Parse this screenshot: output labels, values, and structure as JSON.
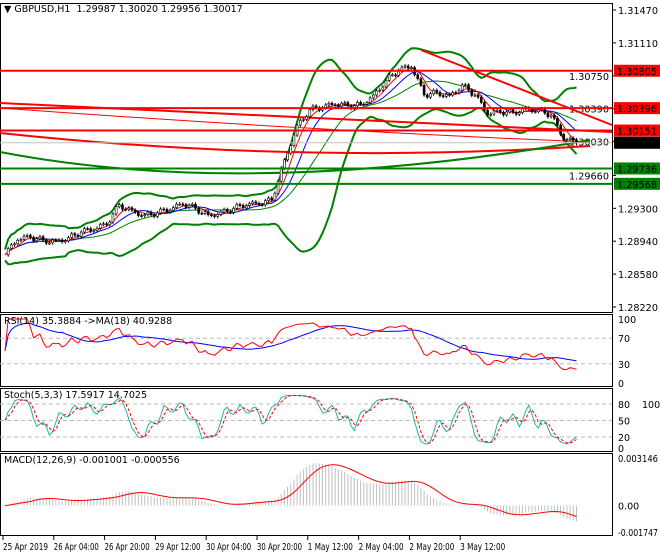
{
  "header": {
    "symbol": "GBPUSD,H1",
    "ohlc": "1.29987 1.30020 1.29956 1.30017"
  },
  "colors": {
    "bull": "#000000",
    "bear": "#000000",
    "support": "#008000",
    "resistance": "#ff0000",
    "ma_fast": "#ff0000",
    "ma_mid": "#0000ff",
    "bands": "#008000",
    "rsi": "#ff0000",
    "rsi_ma": "#0000ff",
    "stoch_main": "#20b2aa",
    "stoch_signal": "#ff0000",
    "macd_hist": "#c0c0c0",
    "macd_signal": "#ff0000"
  },
  "chart_data": [
    {
      "type": "candlestick",
      "title": "GBPUSD,H1 1.29987 1.30020 1.29956 1.30017",
      "timeframe": "H1",
      "x_tick_labels": [
        "25 Apr 2019",
        "26 Apr 04:00",
        "26 Apr 20:00",
        "29 Apr 12:00",
        "30 Apr 04:00",
        "30 Apr 20:00",
        "1 May 12:00",
        "2 May 04:00",
        "2 May 20:00",
        "3 May 12:00"
      ],
      "y_tick_labels": [
        "1.31470",
        "1.31110",
        "1.30750",
        "1.30390",
        "1.30030",
        "1.29660",
        "1.29300",
        "1.28940",
        "1.28580",
        "1.28220"
      ],
      "ylim": [
        1.2822,
        1.3147
      ],
      "close_every_4_bars": [
        1.2879,
        1.2895,
        1.2898,
        1.2895,
        1.2895,
        1.2898,
        1.2904,
        1.2906,
        1.2912,
        1.2934,
        1.2928,
        1.2923,
        1.2925,
        1.2928,
        1.2934,
        1.293,
        1.2923,
        1.2926,
        1.293,
        1.2933,
        1.2934,
        1.2939,
        1.2983,
        1.3021,
        1.3038,
        1.304,
        1.3043,
        1.3042,
        1.3044,
        1.3054,
        1.307,
        1.3081,
        1.3084,
        1.3054,
        1.3057,
        1.3054,
        1.3065,
        1.3054,
        1.3032,
        1.3035,
        1.3035,
        1.304,
        1.3038,
        1.3032,
        1.3005,
        1.30017
      ],
      "horizontal_levels": [
        {
          "price": "1.30805",
          "kind": "resistance"
        },
        {
          "price": "1.30396",
          "kind": "resistance"
        },
        {
          "price": "1.30151",
          "kind": "resistance"
        },
        {
          "price": "1.29736",
          "kind": "support"
        },
        {
          "price": "1.29568",
          "kind": "support"
        }
      ],
      "current_price": "1.30017"
    },
    {
      "type": "line",
      "title": "RSI(14) 35.3884 ->MA(18) 40.9288",
      "y_tick_labels": [
        "100",
        "70",
        "30",
        "0"
      ],
      "ylim": [
        0,
        100
      ],
      "levels": [
        70,
        30
      ]
    },
    {
      "type": "line",
      "title": "Stoch(5,3,3) 17.5917 14.7025",
      "y_tick_labels": [
        "100",
        "80",
        "50",
        "20",
        "0"
      ],
      "ylim": [
        0,
        100
      ],
      "levels": [
        80,
        50,
        20
      ]
    },
    {
      "type": "bar",
      "title": "MACD(12,26,9) -0.001001 -0.000556",
      "y_tick_labels": [
        "0.003146",
        "0.00",
        "-0.001747"
      ],
      "ylim": [
        -0.001747,
        0.003146
      ]
    }
  ]
}
